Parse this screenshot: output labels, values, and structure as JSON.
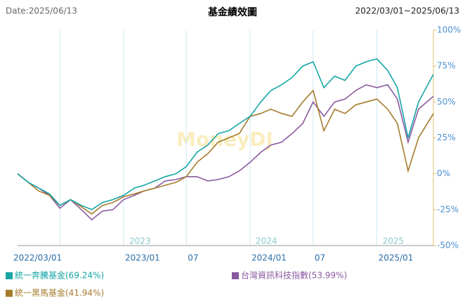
{
  "chart_data": {
    "type": "line",
    "title": "基金績效圖",
    "date_label": "Date:2025/06/13",
    "range_label": "2022/03/01~2025/06/13",
    "watermark": "MoneyDJ",
    "x": [
      "2022/03/01",
      "2022/04/01",
      "2022/05/01",
      "2022/06/01",
      "2022/07/01",
      "2022/08/01",
      "2022/09/01",
      "2022/10/01",
      "2022/11/01",
      "2022/12/01",
      "2023/01/01",
      "2023/02/01",
      "2023/03/01",
      "2023/04/01",
      "2023/05/01",
      "2023/06/01",
      "2023/07/01",
      "2023/08/01",
      "2023/09/01",
      "2023/10/01",
      "2023/11/01",
      "2023/12/01",
      "2024/01/01",
      "2024/02/01",
      "2024/03/01",
      "2024/04/01",
      "2024/05/01",
      "2024/06/01",
      "2024/07/01",
      "2024/08/01",
      "2024/09/01",
      "2024/10/01",
      "2024/11/01",
      "2024/12/01",
      "2025/01/01",
      "2025/02/01",
      "2025/03/01",
      "2025/04/01",
      "2025/05/01",
      "2025/06/13"
    ],
    "xlim": [
      "2022/03/01",
      "2025/06/13"
    ],
    "xticks": [
      {
        "value": "2022/03/01",
        "label": "2022/03/01"
      },
      {
        "value": "2022/07/01",
        "label": null
      },
      {
        "value": "2023/01/01",
        "label": "2023/01"
      },
      {
        "value": "2023/07/01",
        "label": "07"
      },
      {
        "value": "2024/01/01",
        "label": "2024/01"
      },
      {
        "value": "2024/07/01",
        "label": "07"
      },
      {
        "value": "2025/01/01",
        "label": "2025/01"
      }
    ],
    "year_labels": [
      {
        "value": "2023/01/01",
        "label": "2023"
      },
      {
        "value": "2024/01/01",
        "label": "2024"
      },
      {
        "value": "2025/01/01",
        "label": "2025"
      }
    ],
    "ylim": [
      -50,
      100
    ],
    "yticks": [
      {
        "value": -50,
        "label": "-50%"
      },
      {
        "value": -25,
        "label": "-25%"
      },
      {
        "value": 0,
        "label": "0%"
      },
      {
        "value": 25,
        "label": "25%"
      },
      {
        "value": 50,
        "label": "50%"
      },
      {
        "value": 75,
        "label": "75%"
      },
      {
        "value": 100,
        "label": "100%"
      }
    ],
    "grid": true,
    "series": [
      {
        "name": "統一奔騰基金(69.24%)",
        "color": "#17a5a5",
        "values": [
          0,
          -6,
          -10,
          -14,
          -22,
          -18,
          -22,
          -25,
          -20,
          -18,
          -15,
          -10,
          -8,
          -5,
          -2,
          0,
          5,
          15,
          20,
          28,
          30,
          35,
          40,
          50,
          58,
          62,
          67,
          75,
          78,
          60,
          68,
          65,
          75,
          78,
          80,
          72,
          60,
          25,
          50,
          69.24
        ]
      },
      {
        "name": "台灣資訊科技指數(53.99%)",
        "color": "#8a5aa0",
        "values": [
          0,
          -6,
          -10,
          -15,
          -24,
          -18,
          -25,
          -32,
          -26,
          -25,
          -18,
          -15,
          -12,
          -10,
          -5,
          -4,
          -2,
          -2,
          -5,
          -4,
          -2,
          2,
          8,
          15,
          20,
          22,
          28,
          35,
          50,
          40,
          50,
          52,
          58,
          62,
          60,
          62,
          52,
          22,
          45,
          53.99
        ]
      },
      {
        "name": "統一黑馬基金(41.94%)",
        "color": "#a67b2c",
        "values": [
          0,
          -6,
          -12,
          -15,
          -22,
          -18,
          -23,
          -28,
          -22,
          -20,
          -16,
          -14,
          -12,
          -10,
          -8,
          -6,
          -2,
          8,
          14,
          22,
          25,
          28,
          40,
          42,
          45,
          42,
          40,
          50,
          58,
          30,
          45,
          42,
          48,
          50,
          52,
          45,
          35,
          2,
          25,
          41.94
        ]
      }
    ]
  }
}
